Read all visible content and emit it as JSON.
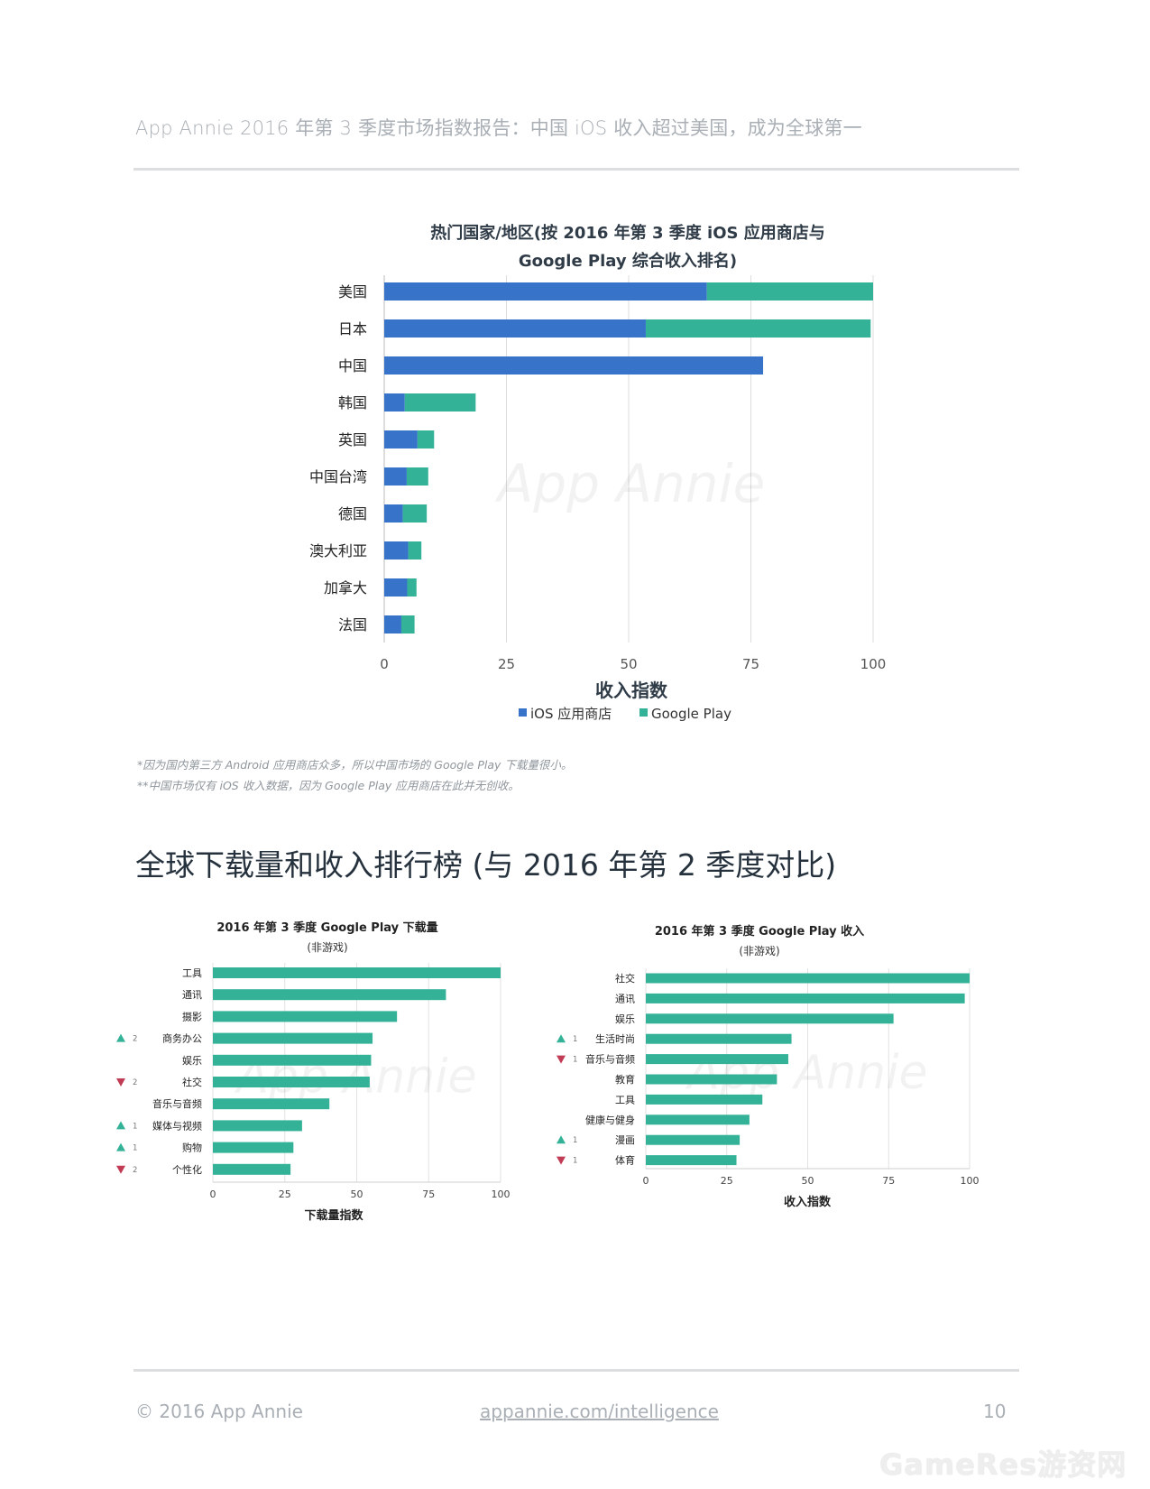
{
  "header": {
    "title": "App Annie 2016 年第 3 季度市场指数报告：中国 iOS 收入超过美国，成为全球第一"
  },
  "chart_data": [
    {
      "id": "country-revenue",
      "type": "bar",
      "stacked": true,
      "orientation": "horizontal",
      "title_line1": "热门国家/地区(按 2016 年第 3 季度 iOS 应用商店与",
      "title_line2": "Google Play 综合收入排名)",
      "categories": [
        "美国",
        "日本",
        "中国",
        "韩国",
        "英国",
        "中国台湾",
        "德国",
        "澳大利亚",
        "加拿大",
        "法国"
      ],
      "series": [
        {
          "name": "iOS 应用商店",
          "color": "#3773c9",
          "values": [
            66,
            53.5,
            77.5,
            4.2,
            6.8,
            4.6,
            3.8,
            4.9,
            4.7,
            3.5
          ]
        },
        {
          "name": "Google Play",
          "color": "#34b297",
          "values": [
            34,
            46,
            0,
            14.5,
            3.4,
            4.4,
            4.9,
            2.7,
            1.9,
            2.7
          ]
        }
      ],
      "xlabel": "收入指数",
      "xlim": [
        0,
        100
      ],
      "xticks": [
        0,
        25,
        50,
        75,
        100
      ],
      "grid": true,
      "legend": "bottom",
      "watermark": "App Annie"
    },
    {
      "id": "gp-downloads",
      "type": "bar",
      "orientation": "horizontal",
      "title_line1": "2016 年第 3 季度 Google Play 下载量",
      "title_line2": "(非游戏)",
      "categories": [
        "工具",
        "通讯",
        "摄影",
        "商务办公",
        "娱乐",
        "社交",
        "音乐与音频",
        "媒体与视频",
        "购物",
        "个性化"
      ],
      "values": [
        100,
        81,
        64,
        55.5,
        55,
        54.5,
        40.5,
        31,
        28,
        27
      ],
      "rank_change": [
        {
          "dir": "",
          "n": ""
        },
        {
          "dir": "",
          "n": ""
        },
        {
          "dir": "",
          "n": ""
        },
        {
          "dir": "up",
          "n": "2"
        },
        {
          "dir": "",
          "n": ""
        },
        {
          "dir": "down",
          "n": "2"
        },
        {
          "dir": "",
          "n": ""
        },
        {
          "dir": "up",
          "n": "1"
        },
        {
          "dir": "up",
          "n": "1"
        },
        {
          "dir": "down",
          "n": "2"
        }
      ],
      "color": "#34b297",
      "xlabel": "下载量指数",
      "xlim": [
        0,
        100
      ],
      "xticks": [
        0,
        25,
        50,
        75,
        100
      ],
      "grid": true,
      "watermark": "App Annie"
    },
    {
      "id": "gp-revenue",
      "type": "bar",
      "orientation": "horizontal",
      "title_line1": "2016 年第 3 季度 Google Play 收入",
      "title_line2": "(非游戏)",
      "categories": [
        "社交",
        "通讯",
        "娱乐",
        "生活时尚",
        "音乐与音频",
        "教育",
        "工具",
        "健康与健身",
        "漫画",
        "体育"
      ],
      "values": [
        100,
        98.5,
        76.5,
        45,
        44,
        40.5,
        36,
        32,
        29,
        28
      ],
      "rank_change": [
        {
          "dir": "",
          "n": ""
        },
        {
          "dir": "",
          "n": ""
        },
        {
          "dir": "",
          "n": ""
        },
        {
          "dir": "up",
          "n": "1"
        },
        {
          "dir": "down",
          "n": "1"
        },
        {
          "dir": "",
          "n": ""
        },
        {
          "dir": "",
          "n": ""
        },
        {
          "dir": "",
          "n": ""
        },
        {
          "dir": "up",
          "n": "1"
        },
        {
          "dir": "down",
          "n": "1"
        }
      ],
      "color": "#34b297",
      "xlabel": "收入指数",
      "xlim": [
        0,
        100
      ],
      "xticks": [
        0,
        25,
        50,
        75,
        100
      ],
      "grid": true,
      "watermark": "App Annie"
    }
  ],
  "footnotes": {
    "line1": "*因为国内第三方 Android 应用商店众多，所以中国市场的 Google Play 下载量很小。",
    "line2": "**中国市场仅有 iOS 收入数据，因为 Google Play 应用商店在此并无创收。"
  },
  "section": {
    "title": "全球下载量和收入排行榜 (与 2016 年第 2 季度对比)"
  },
  "footer": {
    "copyright": "© 2016 App Annie",
    "link": "appannie.com/intelligence",
    "page_number": "10"
  },
  "site_watermark": "GameRes游资网",
  "colors": {
    "ios": "#3773c9",
    "google_play": "#34b297",
    "up": "#34b297",
    "down": "#c23b55"
  }
}
